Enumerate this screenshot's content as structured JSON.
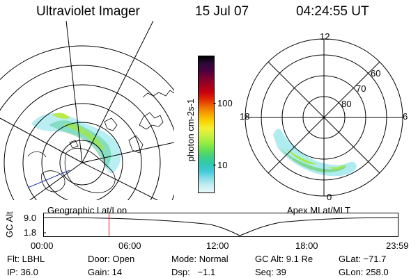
{
  "header": {
    "title": "Ultraviolet Imager",
    "date": "15 Jul 07",
    "time": "04:24:55 UT"
  },
  "colorbar": {
    "unit_label": "photon cm-2s-1",
    "ticks": [
      "100",
      "10"
    ],
    "colors": [
      "#000000",
      "#2a0a3a",
      "#4a0040",
      "#7a0030",
      "#a00020",
      "#c80010",
      "#e22a00",
      "#f06a00",
      "#f7a200",
      "#fbd000",
      "#f4ef30",
      "#ccf040",
      "#9cee40",
      "#68e050",
      "#40d080",
      "#30c8b0",
      "#40c8d8",
      "#88dce8",
      "#c4eef0",
      "#e8f8fa"
    ]
  },
  "left_map": {
    "caption": "Geographic Lat/Lon"
  },
  "right_map": {
    "caption": "Apex MLat/MLT",
    "mlt_labels": [
      "12",
      "18",
      "6",
      "0"
    ],
    "lat_labels": [
      "60",
      "70",
      "80"
    ]
  },
  "timeline": {
    "y_label": "GC Alt",
    "y_ticks": [
      "9.0",
      "1.8"
    ],
    "x_ticks": [
      "00:00",
      "06:00",
      "12:00",
      "18:00",
      "23:59"
    ],
    "marker_time": "04:24:55",
    "marker_color": "#ff0000"
  },
  "info": {
    "filter_label": "Flt: LBHL",
    "door_label": "Door: Open",
    "mode_label": "Mode: Normal",
    "gcalt_label": "GC Alt: 9.1 Re",
    "glat_label": "GLat: −71.7",
    "ip_label": "IP: 36.0",
    "gain_label": "Gain: 14",
    "dsp_label": "Dsp:   −1.1",
    "seq_label": "Seq: 39",
    "glon_label": "GLon: 258.0"
  }
}
